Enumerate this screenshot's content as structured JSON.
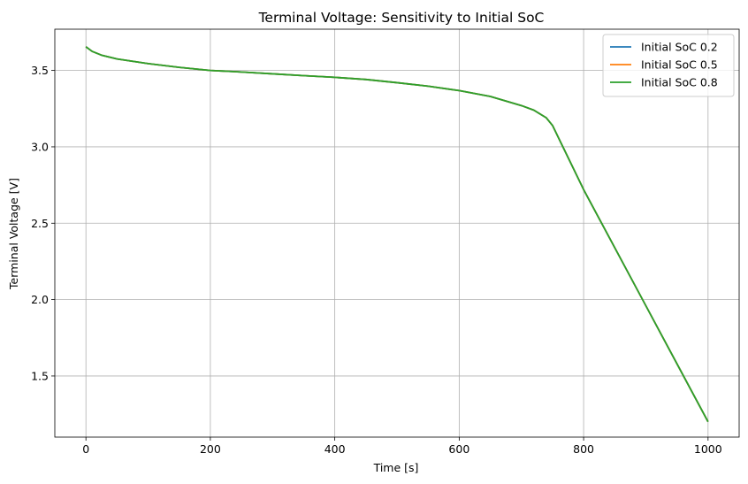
{
  "chart_data": {
    "type": "line",
    "title": "Terminal Voltage: Sensitivity to Initial SoC",
    "xlabel": "Time [s]",
    "ylabel": "Terminal Voltage [V]",
    "xlim": [
      -50,
      1050
    ],
    "ylim": [
      1.1,
      3.77
    ],
    "xticks": [
      0,
      200,
      400,
      600,
      800,
      1000
    ],
    "yticks": [
      1.5,
      2.0,
      2.5,
      3.0,
      3.5
    ],
    "xtick_labels": [
      "0",
      "200",
      "400",
      "600",
      "800",
      "1000"
    ],
    "ytick_labels": [
      "1.5",
      "2.0",
      "2.5",
      "3.0",
      "3.5"
    ],
    "grid": true,
    "legend_position": "top-right",
    "x": [
      0,
      10,
      25,
      50,
      100,
      150,
      200,
      250,
      300,
      350,
      400,
      450,
      500,
      550,
      600,
      650,
      700,
      720,
      740,
      750,
      800,
      900,
      1000
    ],
    "series": [
      {
        "name": "Initial SoC 0.2",
        "color": "#1f77b4",
        "values": [
          3.655,
          3.625,
          3.6,
          3.575,
          3.545,
          3.52,
          3.5,
          3.49,
          3.478,
          3.466,
          3.455,
          3.441,
          3.42,
          3.397,
          3.368,
          3.33,
          3.27,
          3.24,
          3.19,
          3.14,
          2.72,
          1.96,
          1.2
        ]
      },
      {
        "name": "Initial SoC 0.5",
        "color": "#ff7f0e",
        "values": [
          3.655,
          3.625,
          3.6,
          3.575,
          3.545,
          3.52,
          3.5,
          3.49,
          3.478,
          3.466,
          3.455,
          3.441,
          3.42,
          3.397,
          3.368,
          3.33,
          3.27,
          3.24,
          3.19,
          3.14,
          2.72,
          1.96,
          1.2
        ]
      },
      {
        "name": "Initial SoC 0.8",
        "color": "#2ca02c",
        "values": [
          3.655,
          3.625,
          3.6,
          3.575,
          3.545,
          3.52,
          3.5,
          3.49,
          3.478,
          3.466,
          3.455,
          3.441,
          3.42,
          3.397,
          3.368,
          3.33,
          3.27,
          3.24,
          3.19,
          3.14,
          2.72,
          1.96,
          1.2
        ]
      }
    ]
  }
}
